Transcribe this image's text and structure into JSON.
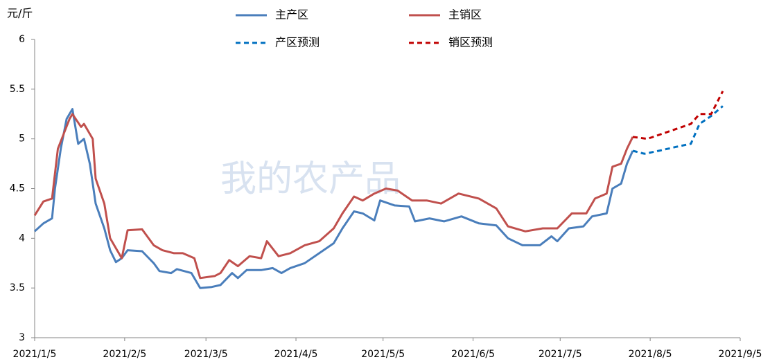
{
  "chart_data": {
    "type": "line",
    "y_label": "元/斤",
    "watermark": "我的农产品",
    "xlim": [
      "2021-01-05",
      "2021-09-05"
    ],
    "xticks": [
      {
        "value": "2021-01-05",
        "label": "2021/1/5"
      },
      {
        "value": "2021-02-05",
        "label": "2021/2/5"
      },
      {
        "value": "2021-03-05",
        "label": "2021/3/5"
      },
      {
        "value": "2021-04-05",
        "label": "2021/4/5"
      },
      {
        "value": "2021-05-05",
        "label": "2021/5/5"
      },
      {
        "value": "2021-06-05",
        "label": "2021/6/5"
      },
      {
        "value": "2021-07-05",
        "label": "2021/7/5"
      },
      {
        "value": "2021-08-05",
        "label": "2021/8/5"
      },
      {
        "value": "2021-09-05",
        "label": "2021/9/5"
      }
    ],
    "ylim": [
      3,
      6
    ],
    "yticks": [
      3,
      3.5,
      4,
      4.5,
      5,
      5.5,
      6
    ],
    "grid": false,
    "series": [
      {
        "name": "主产区",
        "color": "#4a7ebb",
        "dashed": false,
        "x": [
          "2021-01-05",
          "2021-01-08",
          "2021-01-11",
          "2021-01-12",
          "2021-01-14",
          "2021-01-16",
          "2021-01-18",
          "2021-01-20",
          "2021-01-22",
          "2021-01-24",
          "2021-01-26",
          "2021-01-29",
          "2021-01-31",
          "2021-02-02",
          "2021-02-04",
          "2021-02-06",
          "2021-02-11",
          "2021-02-15",
          "2021-02-17",
          "2021-02-21",
          "2021-02-23",
          "2021-02-28",
          "2021-03-03",
          "2021-03-07",
          "2021-03-10",
          "2021-03-14",
          "2021-03-16",
          "2021-03-19",
          "2021-03-24",
          "2021-03-28",
          "2021-03-31",
          "2021-04-03",
          "2021-04-08",
          "2021-04-13",
          "2021-04-18",
          "2021-04-21",
          "2021-04-25",
          "2021-04-28",
          "2021-05-02",
          "2021-05-04",
          "2021-05-09",
          "2021-05-14",
          "2021-05-16",
          "2021-05-21",
          "2021-05-26",
          "2021-06-01",
          "2021-06-07",
          "2021-06-13",
          "2021-06-17",
          "2021-06-22",
          "2021-06-28",
          "2021-07-02",
          "2021-07-04",
          "2021-07-08",
          "2021-07-13",
          "2021-07-16",
          "2021-07-21",
          "2021-07-23",
          "2021-07-26",
          "2021-07-28",
          "2021-07-30"
        ],
        "values": [
          4.07,
          4.15,
          4.2,
          4.5,
          4.9,
          5.2,
          5.3,
          4.95,
          5.0,
          4.75,
          4.35,
          4.1,
          3.88,
          3.76,
          3.8,
          3.88,
          3.87,
          3.75,
          3.67,
          3.65,
          3.69,
          3.65,
          3.5,
          3.51,
          3.53,
          3.65,
          3.6,
          3.68,
          3.68,
          3.7,
          3.65,
          3.7,
          3.75,
          3.85,
          3.95,
          4.1,
          4.27,
          4.25,
          4.18,
          4.38,
          4.33,
          4.32,
          4.17,
          4.2,
          4.17,
          4.22,
          4.15,
          4.13,
          4.0,
          3.93,
          3.93,
          4.02,
          3.97,
          4.1,
          4.12,
          4.22,
          4.25,
          4.5,
          4.55,
          4.75,
          4.88
        ]
      },
      {
        "name": "主销区",
        "color": "#c0504d",
        "dashed": false,
        "x": [
          "2021-01-05",
          "2021-01-08",
          "2021-01-11",
          "2021-01-13",
          "2021-01-15",
          "2021-01-17",
          "2021-01-18",
          "2021-01-21",
          "2021-01-22",
          "2021-01-25",
          "2021-01-26",
          "2021-01-29",
          "2021-01-31",
          "2021-02-02",
          "2021-02-04",
          "2021-02-06",
          "2021-02-11",
          "2021-02-15",
          "2021-02-18",
          "2021-02-22",
          "2021-02-25",
          "2021-03-01",
          "2021-03-03",
          "2021-03-08",
          "2021-03-10",
          "2021-03-13",
          "2021-03-16",
          "2021-03-20",
          "2021-03-24",
          "2021-03-26",
          "2021-03-30",
          "2021-04-03",
          "2021-04-08",
          "2021-04-13",
          "2021-04-18",
          "2021-04-21",
          "2021-04-25",
          "2021-04-28",
          "2021-05-02",
          "2021-05-06",
          "2021-05-10",
          "2021-05-15",
          "2021-05-20",
          "2021-05-25",
          "2021-05-31",
          "2021-06-07",
          "2021-06-13",
          "2021-06-17",
          "2021-06-23",
          "2021-06-29",
          "2021-07-04",
          "2021-07-09",
          "2021-07-14",
          "2021-07-17",
          "2021-07-21",
          "2021-07-23",
          "2021-07-26",
          "2021-07-28",
          "2021-07-30"
        ],
        "values": [
          4.23,
          4.37,
          4.4,
          4.9,
          5.05,
          5.2,
          5.25,
          5.12,
          5.15,
          5.0,
          4.6,
          4.35,
          4.0,
          3.9,
          3.8,
          4.08,
          4.09,
          3.93,
          3.88,
          3.85,
          3.85,
          3.8,
          3.6,
          3.62,
          3.65,
          3.78,
          3.72,
          3.82,
          3.8,
          3.97,
          3.82,
          3.85,
          3.93,
          3.97,
          4.1,
          4.25,
          4.42,
          4.38,
          4.45,
          4.5,
          4.48,
          4.38,
          4.38,
          4.35,
          4.45,
          4.4,
          4.3,
          4.12,
          4.07,
          4.1,
          4.1,
          4.25,
          4.25,
          4.4,
          4.45,
          4.72,
          4.75,
          4.9,
          5.02
        ]
      },
      {
        "name": "产区预测",
        "color": "#0070c0",
        "dashed": true,
        "x": [
          "2021-07-30",
          "2021-08-03",
          "2021-08-08",
          "2021-08-14",
          "2021-08-19",
          "2021-08-22",
          "2021-08-26",
          "2021-08-30"
        ],
        "values": [
          4.88,
          4.85,
          4.88,
          4.92,
          4.95,
          5.15,
          5.23,
          5.33
        ]
      },
      {
        "name": "销区预测",
        "color": "#c00000",
        "dashed": true,
        "x": [
          "2021-07-30",
          "2021-08-04",
          "2021-08-09",
          "2021-08-14",
          "2021-08-19",
          "2021-08-22",
          "2021-08-26",
          "2021-08-30"
        ],
        "values": [
          5.02,
          5.0,
          5.05,
          5.1,
          5.15,
          5.25,
          5.25,
          5.48
        ]
      }
    ]
  }
}
